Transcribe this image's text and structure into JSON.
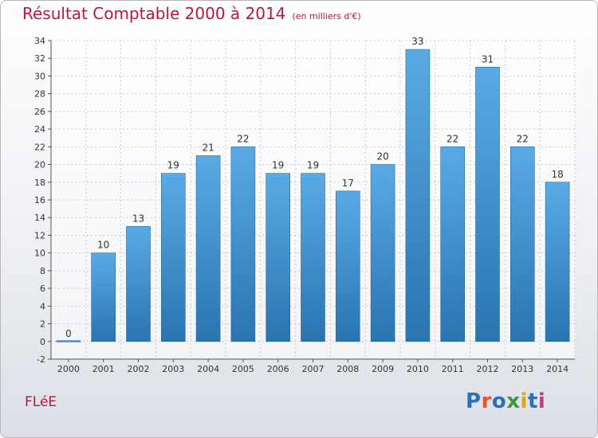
{
  "header": {
    "title": "Résultat Comptable 2000 à 2014",
    "unit": "(en milliers d'€)"
  },
  "footer": {
    "commune": "FLéE",
    "logo": "Proxiti",
    "logo_colors": [
      "#2a6fb7",
      "#e8542a",
      "#2a6fb7",
      "#3a9a3a",
      "#e8a21a",
      "#2a6fb7",
      "#c23a8a"
    ]
  },
  "colors": {
    "accent": "#c0143c",
    "bar_top": "#5aaae6",
    "bar_bottom": "#2a74b0",
    "grid": "#c9ccd3"
  },
  "chart_data": {
    "type": "bar",
    "title": "Résultat Comptable 2000 à 2014",
    "subtitle": "(en milliers d'€)",
    "xlabel": "",
    "ylabel": "",
    "categories": [
      "2000",
      "2001",
      "2002",
      "2003",
      "2004",
      "2005",
      "2006",
      "2007",
      "2008",
      "2009",
      "2010",
      "2011",
      "2012",
      "2013",
      "2014"
    ],
    "values": [
      0,
      10,
      13,
      19,
      21,
      22,
      19,
      19,
      17,
      20,
      33,
      22,
      31,
      22,
      18
    ],
    "ylim": [
      -2,
      34
    ],
    "yticks": [
      -2,
      0,
      2,
      4,
      6,
      8,
      10,
      12,
      14,
      16,
      18,
      20,
      22,
      24,
      26,
      28,
      30,
      32,
      34
    ],
    "grid": true,
    "data_labels": true
  }
}
